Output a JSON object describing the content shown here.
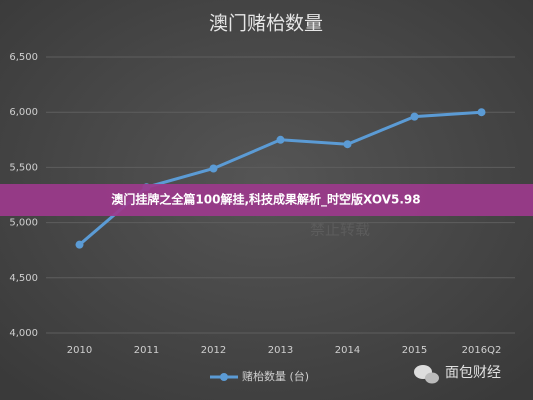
{
  "chart_data": {
    "type": "line",
    "title": "澳门赌枱数量",
    "categories": [
      "2010",
      "2011",
      "2012",
      "2013",
      "2014",
      "2015",
      "2016Q2"
    ],
    "series": [
      {
        "name": "赌枱数量 (台)",
        "color": "#5b9bd5",
        "values": [
          4800,
          5320,
          5490,
          5750,
          5710,
          5960,
          6000
        ]
      }
    ],
    "ylim": [
      4000,
      6500
    ],
    "yticks": [
      {
        "value": 4000,
        "label": "4,000"
      },
      {
        "value": 4500,
        "label": "4,500"
      },
      {
        "value": 5000,
        "label": "5,000"
      },
      {
        "value": 5500,
        "label": "5,500"
      },
      {
        "value": 6000,
        "label": "6,000"
      },
      {
        "value": 6500,
        "label": "6,500"
      }
    ],
    "grid": true,
    "legend": "bottom"
  },
  "banner": {
    "text": "澳门挂牌之全篇100解挂,科技成果解析_时空版XOV5.98"
  },
  "watermark": {
    "center": "禁止转载",
    "brand": "面包财经"
  }
}
